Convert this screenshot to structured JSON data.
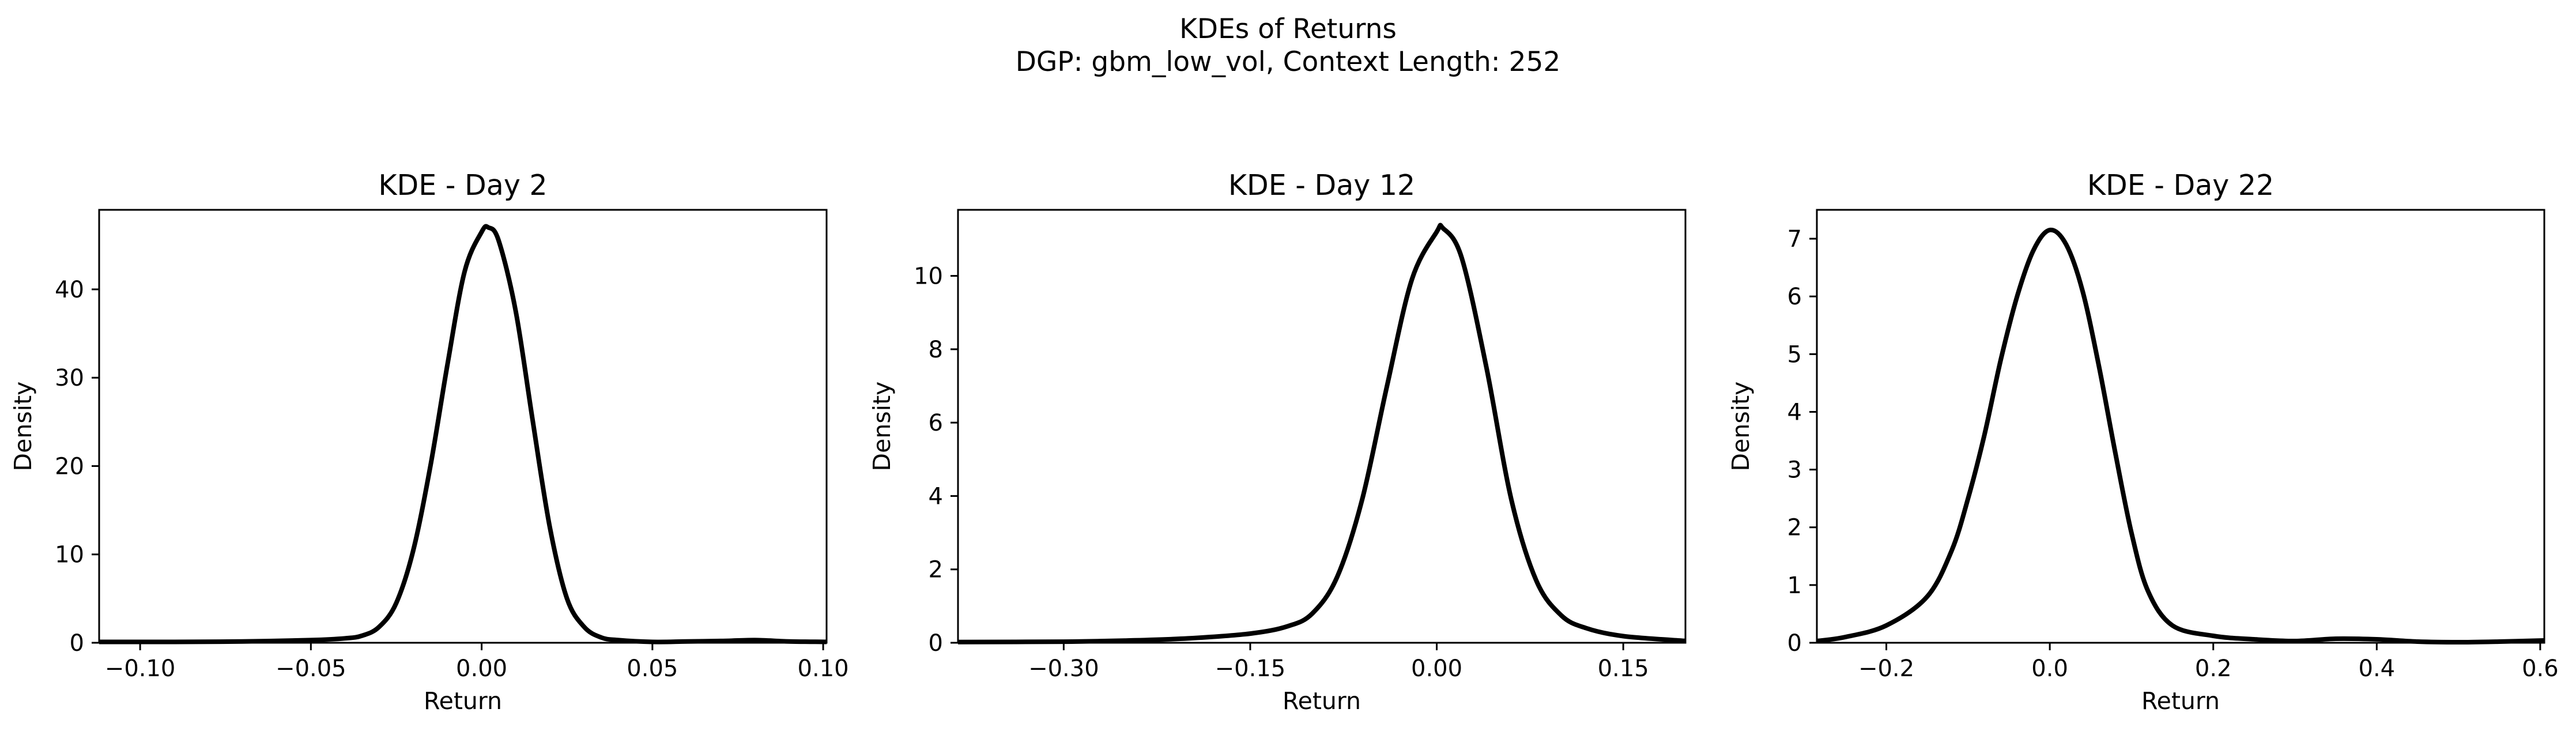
{
  "figure": {
    "title": "KDEs of Returns",
    "subtitle": "DGP: gbm_low_vol, Context Length: 252"
  },
  "chart_data": [
    {
      "type": "line",
      "title": "KDE - Day 2",
      "xlabel": "Return",
      "ylabel": "Density",
      "xlim": [
        -0.112,
        0.101
      ],
      "ylim": [
        0,
        49
      ],
      "xticks": [
        -0.1,
        -0.05,
        0.0,
        0.05,
        0.1
      ],
      "xtick_labels": [
        "−0.10",
        "−0.05",
        "0.00",
        "0.05",
        "0.10"
      ],
      "yticks": [
        0,
        10,
        20,
        30,
        40
      ],
      "ytick_labels": [
        "0",
        "10",
        "20",
        "30",
        "40"
      ],
      "grid": false,
      "line_color": "#000000",
      "series": [
        {
          "x": [
            -0.112,
            -0.09,
            -0.07,
            -0.05,
            -0.04,
            -0.035,
            -0.03,
            -0.025,
            -0.02,
            -0.015,
            -0.01,
            -0.005,
            0.0,
            0.002,
            0.005,
            0.01,
            0.015,
            0.02,
            0.025,
            0.03,
            0.035,
            0.04,
            0.05,
            0.06,
            0.07,
            0.08,
            0.09,
            0.101
          ],
          "y": [
            0.1,
            0.1,
            0.15,
            0.3,
            0.5,
            0.8,
            1.8,
            4.5,
            10.5,
            20,
            31.5,
            42,
            46.5,
            47,
            45.5,
            37.5,
            25,
            13,
            5,
            1.8,
            0.6,
            0.3,
            0.1,
            0.15,
            0.2,
            0.3,
            0.15,
            0.1
          ]
        }
      ]
    },
    {
      "type": "line",
      "title": "KDE - Day 12",
      "xlabel": "Return",
      "ylabel": "Density",
      "xlim": [
        -0.385,
        0.2
      ],
      "ylim": [
        0,
        11.8
      ],
      "xticks": [
        -0.3,
        -0.15,
        0.0,
        0.15
      ],
      "xtick_labels": [
        "−0.30",
        "−0.15",
        "0.00",
        "0.15"
      ],
      "yticks": [
        0,
        2,
        4,
        6,
        8,
        10
      ],
      "ytick_labels": [
        "0",
        "2",
        "4",
        "6",
        "8",
        "10"
      ],
      "grid": false,
      "line_color": "#000000",
      "series": [
        {
          "x": [
            -0.385,
            -0.3,
            -0.25,
            -0.2,
            -0.15,
            -0.12,
            -0.1,
            -0.08,
            -0.06,
            -0.04,
            -0.02,
            0.0,
            0.005,
            0.02,
            0.04,
            0.06,
            0.08,
            0.1,
            0.12,
            0.15,
            0.2
          ],
          "y": [
            0.02,
            0.03,
            0.06,
            0.12,
            0.25,
            0.45,
            0.8,
            1.8,
            3.9,
            7.0,
            9.9,
            11.2,
            11.3,
            10.5,
            7.5,
            3.9,
            1.7,
            0.75,
            0.4,
            0.18,
            0.05
          ]
        }
      ]
    },
    {
      "type": "line",
      "title": "KDE - Day 22",
      "xlabel": "Return",
      "ylabel": "Density",
      "xlim": [
        -0.285,
        0.605
      ],
      "ylim": [
        0,
        7.5
      ],
      "xticks": [
        -0.2,
        0.0,
        0.2,
        0.4,
        0.6
      ],
      "xtick_labels": [
        "−0.2",
        "0.0",
        "0.2",
        "0.4",
        "0.6"
      ],
      "yticks": [
        0,
        1,
        2,
        3,
        4,
        5,
        6,
        7
      ],
      "ytick_labels": [
        "0",
        "1",
        "2",
        "3",
        "4",
        "5",
        "6",
        "7"
      ],
      "grid": false,
      "line_color": "#000000",
      "series": [
        {
          "x": [
            -0.285,
            -0.25,
            -0.2,
            -0.15,
            -0.12,
            -0.1,
            -0.08,
            -0.06,
            -0.04,
            -0.02,
            0.0,
            0.02,
            0.04,
            0.06,
            0.08,
            0.1,
            0.12,
            0.15,
            0.2,
            0.25,
            0.3,
            0.35,
            0.4,
            0.45,
            0.5,
            0.55,
            0.605
          ],
          "y": [
            0.03,
            0.1,
            0.3,
            0.8,
            1.6,
            2.5,
            3.6,
            4.9,
            6.0,
            6.8,
            7.15,
            6.9,
            6.1,
            4.8,
            3.3,
            1.9,
            0.9,
            0.3,
            0.12,
            0.06,
            0.03,
            0.07,
            0.06,
            0.02,
            0.01,
            0.02,
            0.04
          ]
        }
      ]
    }
  ]
}
